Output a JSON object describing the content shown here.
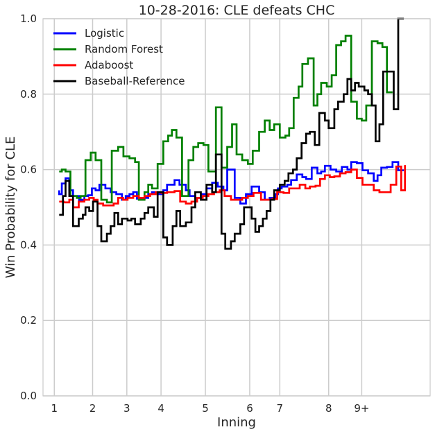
{
  "chart_data": {
    "type": "line",
    "step": true,
    "title": "10-28-2016: CLE defeats CHC",
    "xlabel": "Inning",
    "ylabel": "Win Probability for CLE",
    "ylim": [
      0,
      1
    ],
    "xlim": [
      -3,
      100
    ],
    "grid": true,
    "legend_position": "top-left",
    "x_ticks": [
      {
        "label": "1",
        "pos": 0
      },
      {
        "label": "2",
        "pos": 10.2
      },
      {
        "label": "3",
        "pos": 19.3
      },
      {
        "label": "4",
        "pos": 28.4
      },
      {
        "label": "5",
        "pos": 40.2
      },
      {
        "label": "6",
        "pos": 52
      },
      {
        "label": "7",
        "pos": 60
      },
      {
        "label": "8",
        "pos": 73
      },
      {
        "label": "9+",
        "pos": 81.8
      }
    ],
    "y_ticks": [
      "0.0",
      "0.2",
      "0.4",
      "0.6",
      "0.8",
      "1.0"
    ],
    "series": [
      {
        "name": "Logistic",
        "color": "#0000ff",
        "points": [
          [
            1.3,
            0.545
          ],
          [
            1.3,
            0.535
          ],
          [
            2,
            0.563
          ],
          [
            3,
            0.577
          ],
          [
            4,
            0.545
          ],
          [
            5,
            0.53
          ],
          [
            6.6,
            0.52
          ],
          [
            8,
            0.53
          ],
          [
            9,
            0.532
          ],
          [
            10,
            0.55
          ],
          [
            11,
            0.545
          ],
          [
            12,
            0.56
          ],
          [
            13.6,
            0.55
          ],
          [
            15,
            0.54
          ],
          [
            16.5,
            0.535
          ],
          [
            18,
            0.52
          ],
          [
            19,
            0.53
          ],
          [
            20,
            0.535
          ],
          [
            21,
            0.54
          ],
          [
            22,
            0.523
          ],
          [
            24,
            0.525
          ],
          [
            25,
            0.535
          ],
          [
            26,
            0.54
          ],
          [
            27.5,
            0.535
          ],
          [
            29,
            0.545
          ],
          [
            30,
            0.56
          ],
          [
            32,
            0.572
          ],
          [
            33.3,
            0.56
          ],
          [
            35,
            0.545
          ],
          [
            36,
            0.53
          ],
          [
            37.5,
            0.525
          ],
          [
            39,
            0.535
          ],
          [
            40.5,
            0.55
          ],
          [
            42,
            0.565
          ],
          [
            43.5,
            0.555
          ],
          [
            45,
            0.545
          ],
          [
            46,
            0.6
          ],
          [
            48,
            0.525
          ],
          [
            49.5,
            0.51
          ],
          [
            51,
            0.535
          ],
          [
            52.5,
            0.555
          ],
          [
            54.5,
            0.54
          ],
          [
            56,
            0.52
          ],
          [
            57.3,
            0.525
          ],
          [
            58.8,
            0.535
          ],
          [
            59.5,
            0.55
          ],
          [
            60.5,
            0.555
          ],
          [
            62,
            0.56
          ],
          [
            63,
            0.572
          ],
          [
            64.5,
            0.587
          ],
          [
            66,
            0.58
          ],
          [
            67,
            0.575
          ],
          [
            68.5,
            0.605
          ],
          [
            70,
            0.59
          ],
          [
            71,
            0.595
          ],
          [
            72,
            0.61
          ],
          [
            73.5,
            0.6
          ],
          [
            75,
            0.595
          ],
          [
            76.5,
            0.607
          ],
          [
            78,
            0.6
          ],
          [
            79,
            0.62
          ],
          [
            80.5,
            0.617
          ],
          [
            82,
            0.598
          ],
          [
            83.5,
            0.59
          ],
          [
            85,
            0.57
          ],
          [
            86,
            0.585
          ],
          [
            87,
            0.605
          ],
          [
            88.5,
            0.607
          ],
          [
            90,
            0.62
          ],
          [
            91.5,
            0.598
          ],
          [
            93,
            0.598
          ]
        ]
      },
      {
        "name": "Random Forest",
        "color": "#008000",
        "points": [
          [
            1.3,
            0.595
          ],
          [
            2,
            0.6
          ],
          [
            3,
            0.595
          ],
          [
            4.3,
            0.53
          ],
          [
            6,
            0.525
          ],
          [
            7,
            0.53
          ],
          [
            8.3,
            0.625
          ],
          [
            9.7,
            0.645
          ],
          [
            11,
            0.625
          ],
          [
            12.5,
            0.52
          ],
          [
            14,
            0.513
          ],
          [
            15.3,
            0.65
          ],
          [
            17,
            0.66
          ],
          [
            18.4,
            0.635
          ],
          [
            20,
            0.63
          ],
          [
            21.5,
            0.62
          ],
          [
            22.5,
            0.52
          ],
          [
            24,
            0.54
          ],
          [
            25,
            0.56
          ],
          [
            26,
            0.55
          ],
          [
            27.5,
            0.615
          ],
          [
            29,
            0.675
          ],
          [
            30.3,
            0.69
          ],
          [
            31.3,
            0.705
          ],
          [
            32.5,
            0.685
          ],
          [
            34,
            0.53
          ],
          [
            35.7,
            0.625
          ],
          [
            37,
            0.66
          ],
          [
            38.3,
            0.67
          ],
          [
            39.7,
            0.665
          ],
          [
            41,
            0.595
          ],
          [
            43,
            0.765
          ],
          [
            44.5,
            0.605
          ],
          [
            46,
            0.66
          ],
          [
            47.3,
            0.72
          ],
          [
            48.5,
            0.64
          ],
          [
            50,
            0.625
          ],
          [
            51.5,
            0.615
          ],
          [
            52.8,
            0.65
          ],
          [
            54.5,
            0.7
          ],
          [
            56,
            0.73
          ],
          [
            57.3,
            0.705
          ],
          [
            58.5,
            0.72
          ],
          [
            60,
            0.685
          ],
          [
            61.5,
            0.69
          ],
          [
            62.5,
            0.71
          ],
          [
            63.7,
            0.79
          ],
          [
            65,
            0.82
          ],
          [
            66,
            0.88
          ],
          [
            67.5,
            0.895
          ],
          [
            69,
            0.77
          ],
          [
            70,
            0.8
          ],
          [
            71,
            0.83
          ],
          [
            72.5,
            0.82
          ],
          [
            73.8,
            0.85
          ],
          [
            75,
            0.93
          ],
          [
            76.3,
            0.94
          ],
          [
            77.5,
            0.955
          ],
          [
            79,
            0.78
          ],
          [
            80.5,
            0.735
          ],
          [
            81.8,
            0.73
          ],
          [
            83,
            0.77
          ],
          [
            84.5,
            0.94
          ],
          [
            86,
            0.935
          ],
          [
            87.3,
            0.925
          ],
          [
            88.5,
            0.805
          ],
          [
            90,
            0.805
          ]
        ]
      },
      {
        "name": "Adaboost",
        "color": "#ff0000",
        "points": [
          [
            1.3,
            0.515
          ],
          [
            2.5,
            0.513
          ],
          [
            4,
            0.52
          ],
          [
            5,
            0.5
          ],
          [
            6.5,
            0.515
          ],
          [
            8,
            0.52
          ],
          [
            9.3,
            0.525
          ],
          [
            10.5,
            0.52
          ],
          [
            11.5,
            0.51
          ],
          [
            13,
            0.505
          ],
          [
            14.5,
            0.505
          ],
          [
            15.8,
            0.51
          ],
          [
            17,
            0.525
          ],
          [
            18.3,
            0.52
          ],
          [
            19.5,
            0.525
          ],
          [
            21,
            0.53
          ],
          [
            22.5,
            0.525
          ],
          [
            24,
            0.53
          ],
          [
            25.5,
            0.535
          ],
          [
            27,
            0.54
          ],
          [
            28.5,
            0.538
          ],
          [
            30,
            0.54
          ],
          [
            32,
            0.543
          ],
          [
            33.5,
            0.515
          ],
          [
            35,
            0.51
          ],
          [
            36.5,
            0.515
          ],
          [
            38,
            0.525
          ],
          [
            39.5,
            0.53
          ],
          [
            41,
            0.535
          ],
          [
            42.5,
            0.54
          ],
          [
            44,
            0.545
          ],
          [
            45.3,
            0.53
          ],
          [
            47,
            0.52
          ],
          [
            48.5,
            0.52
          ],
          [
            50,
            0.525
          ],
          [
            51.5,
            0.53
          ],
          [
            53,
            0.538
          ],
          [
            55,
            0.52
          ],
          [
            56.5,
            0.52
          ],
          [
            58,
            0.522
          ],
          [
            59.3,
            0.54
          ],
          [
            61,
            0.538
          ],
          [
            62.5,
            0.55
          ],
          [
            64,
            0.55
          ],
          [
            65.3,
            0.56
          ],
          [
            66.8,
            0.55
          ],
          [
            68,
            0.555
          ],
          [
            69.5,
            0.557
          ],
          [
            70.7,
            0.575
          ],
          [
            72,
            0.585
          ],
          [
            73.3,
            0.58
          ],
          [
            74.5,
            0.582
          ],
          [
            76,
            0.59
          ],
          [
            77.5,
            0.593
          ],
          [
            79,
            0.6
          ],
          [
            80.5,
            0.578
          ],
          [
            82,
            0.56
          ],
          [
            83.5,
            0.56
          ],
          [
            85,
            0.545
          ],
          [
            86.5,
            0.54
          ],
          [
            88,
            0.54
          ],
          [
            89.5,
            0.56
          ],
          [
            91,
            0.608
          ],
          [
            92.3,
            0.545
          ],
          [
            93.3,
            0.612
          ]
        ]
      },
      {
        "name": "Baseball-Reference",
        "color": "#000000",
        "points": [
          [
            1.3,
            0.48
          ],
          [
            2.3,
            0.53
          ],
          [
            3,
            0.57
          ],
          [
            4,
            0.53
          ],
          [
            5,
            0.45
          ],
          [
            6.5,
            0.47
          ],
          [
            7.6,
            0.48
          ],
          [
            8.3,
            0.5
          ],
          [
            9.3,
            0.49
          ],
          [
            10.3,
            0.515
          ],
          [
            11.5,
            0.45
          ],
          [
            12.5,
            0.41
          ],
          [
            14,
            0.43
          ],
          [
            15,
            0.45
          ],
          [
            16,
            0.485
          ],
          [
            17,
            0.455
          ],
          [
            18,
            0.47
          ],
          [
            19.5,
            0.465
          ],
          [
            20.5,
            0.47
          ],
          [
            21.5,
            0.455
          ],
          [
            23,
            0.47
          ],
          [
            24,
            0.485
          ],
          [
            25,
            0.5
          ],
          [
            26.5,
            0.475
          ],
          [
            27.5,
            0.54
          ],
          [
            29,
            0.42
          ],
          [
            30,
            0.4
          ],
          [
            31.5,
            0.45
          ],
          [
            32.5,
            0.49
          ],
          [
            33.5,
            0.45
          ],
          [
            35,
            0.46
          ],
          [
            36.5,
            0.5
          ],
          [
            37.5,
            0.54
          ],
          [
            39,
            0.52
          ],
          [
            40.5,
            0.56
          ],
          [
            42,
            0.54
          ],
          [
            43,
            0.64
          ],
          [
            44.5,
            0.43
          ],
          [
            45.5,
            0.39
          ],
          [
            47,
            0.41
          ],
          [
            48,
            0.43
          ],
          [
            49.5,
            0.455
          ],
          [
            50.5,
            0.5
          ],
          [
            51.5,
            0.5
          ],
          [
            52.5,
            0.47
          ],
          [
            53.5,
            0.435
          ],
          [
            54.5,
            0.45
          ],
          [
            55.5,
            0.47
          ],
          [
            56.5,
            0.49
          ],
          [
            57.5,
            0.52
          ],
          [
            58.5,
            0.545
          ],
          [
            60,
            0.56
          ],
          [
            61.3,
            0.57
          ],
          [
            62.3,
            0.59
          ],
          [
            63.5,
            0.6
          ],
          [
            64.5,
            0.63
          ],
          [
            65.8,
            0.67
          ],
          [
            67,
            0.695
          ],
          [
            68,
            0.7
          ],
          [
            69.3,
            0.665
          ],
          [
            70.5,
            0.75
          ],
          [
            72,
            0.73
          ],
          [
            73,
            0.71
          ],
          [
            74.5,
            0.76
          ],
          [
            75.5,
            0.78
          ],
          [
            77,
            0.8
          ],
          [
            78,
            0.84
          ],
          [
            79,
            0.81
          ],
          [
            80,
            0.83
          ],
          [
            81,
            0.82
          ],
          [
            82.5,
            0.81
          ],
          [
            83.5,
            0.8
          ],
          [
            84.5,
            0.77
          ],
          [
            85.5,
            0.675
          ],
          [
            86.5,
            0.72
          ],
          [
            87.5,
            0.86
          ],
          [
            89,
            0.86
          ],
          [
            90.3,
            0.76
          ],
          [
            91.5,
            1.0
          ],
          [
            93,
            1.0
          ]
        ]
      }
    ]
  }
}
